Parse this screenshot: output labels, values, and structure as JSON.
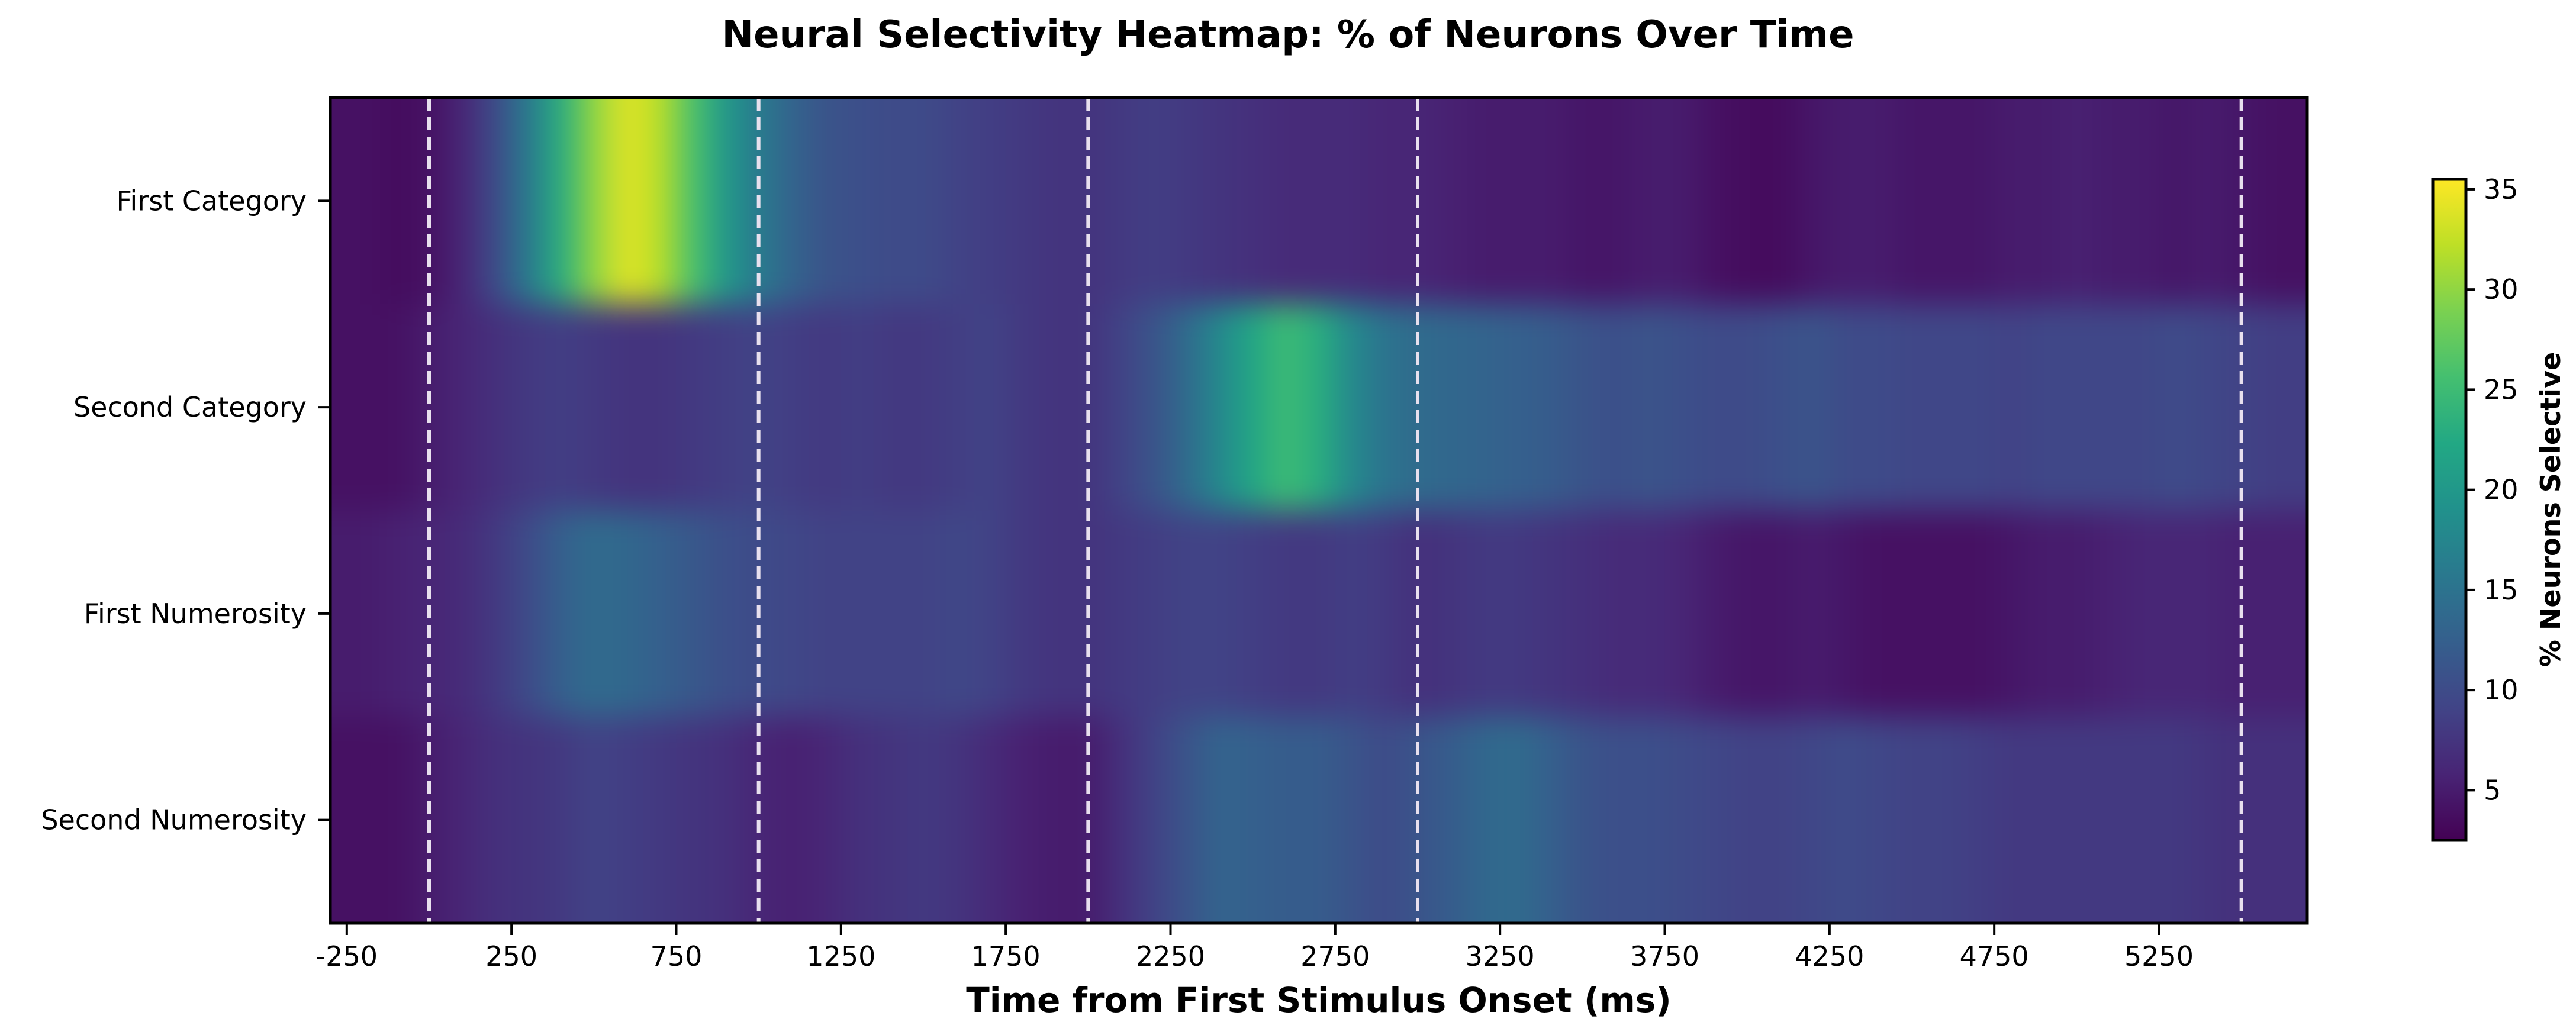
{
  "chart_data": {
    "type": "heatmap",
    "title": "Neural Selectivity Heatmap: % of Neurons Over Time",
    "xlabel": "Time from First Stimulus Onset (ms)",
    "colorbar_label": "% Neurons Selective",
    "colormap": "viridis",
    "xlim": [
      -300,
      5700
    ],
    "x_ticks": [
      -250,
      250,
      750,
      1250,
      1750,
      2250,
      2750,
      3250,
      3750,
      4250,
      4750,
      5250
    ],
    "x_tick_labels": [
      "-250",
      "250",
      "750",
      "1250",
      "1750",
      "2250",
      "2750",
      "3250",
      "3750",
      "4250",
      "4750",
      "5250"
    ],
    "rows": [
      "First Category",
      "Second Category",
      "First Numerosity",
      "Second Numerosity"
    ],
    "vlines": [
      0,
      1000,
      2000,
      3000,
      5500
    ],
    "vline_color": "#e8e0ee",
    "color_range": [
      2.5,
      35.5
    ],
    "colorbar_ticks": [
      5,
      10,
      15,
      20,
      25,
      30,
      35
    ],
    "colorbar_tick_labels": [
      "5",
      "10",
      "15",
      "20",
      "25",
      "30",
      "35"
    ],
    "time_bins_ms": [
      -300,
      -200,
      -100,
      0,
      100,
      200,
      300,
      400,
      500,
      600,
      700,
      800,
      900,
      1000,
      1100,
      1200,
      1300,
      1400,
      1500,
      1600,
      1700,
      1800,
      1900,
      2000,
      2100,
      2200,
      2300,
      2400,
      2500,
      2600,
      2700,
      2800,
      2900,
      3000,
      3100,
      3200,
      3300,
      3400,
      3500,
      3600,
      3700,
      3800,
      3900,
      4000,
      4100,
      4200,
      4300,
      4400,
      4500,
      4600,
      4700,
      4800,
      4900,
      5000,
      5100,
      5200,
      5300,
      5400,
      5500,
      5600,
      5700
    ],
    "values": [
      [
        4,
        4,
        3.5,
        4,
        6,
        10,
        16,
        23,
        30,
        34,
        32,
        26,
        20,
        16,
        13,
        11,
        10.5,
        10,
        10,
        9,
        8.5,
        8,
        7.5,
        7.5,
        8,
        8.5,
        8,
        7.5,
        7,
        6.5,
        6.5,
        6.5,
        6,
        6,
        5.5,
        5,
        5,
        5,
        4.5,
        4.5,
        5,
        5,
        4,
        3.5,
        3.5,
        4.5,
        5,
        5,
        4.5,
        4.5,
        4.5,
        5,
        5,
        5.5,
        5,
        5,
        4.5,
        5,
        4.5,
        4,
        4
      ],
      [
        4,
        4,
        4,
        5,
        6,
        7,
        8,
        8.5,
        8,
        7.5,
        7.5,
        8,
        8.5,
        9,
        8.5,
        8,
        8.5,
        8,
        8,
        8.5,
        9,
        8,
        7.5,
        7.5,
        9,
        11,
        14,
        18,
        22,
        25,
        23,
        18,
        15,
        14,
        13.5,
        13,
        12.5,
        12,
        11,
        10.5,
        11,
        10.5,
        10,
        10,
        10.5,
        11,
        10,
        10,
        9.5,
        9.5,
        9.5,
        9,
        9.5,
        9.5,
        9.5,
        9.5,
        10,
        9.5,
        9,
        8.5,
        8.5
      ],
      [
        5,
        5,
        5.5,
        6,
        6.5,
        8,
        10,
        12.5,
        14,
        13.5,
        12.5,
        11.5,
        10.5,
        10,
        9.5,
        9,
        9,
        9,
        9,
        9.5,
        9,
        8,
        7.5,
        7.5,
        8,
        8.5,
        9,
        9,
        8.5,
        8,
        8,
        8.5,
        8,
        7,
        7.5,
        8,
        8,
        7.5,
        7,
        6.5,
        6.5,
        6,
        5,
        4.5,
        4.5,
        5,
        4.5,
        4,
        4,
        4,
        4,
        4.5,
        5,
        5,
        5.5,
        6,
        6,
        6,
        5.5,
        5.5,
        5.5
      ],
      [
        4,
        4,
        4,
        5,
        6,
        7,
        7.5,
        8,
        9,
        8.5,
        8,
        7.5,
        7,
        6,
        5.5,
        6,
        7,
        7.5,
        8,
        7.5,
        6.5,
        5.5,
        5,
        5,
        7,
        9,
        11,
        13,
        12.5,
        12,
        12,
        11,
        10,
        11,
        12,
        13.5,
        14,
        12.5,
        11,
        10.5,
        10.5,
        10,
        9.5,
        9,
        9,
        9.5,
        10,
        9.5,
        9,
        9,
        8.5,
        8,
        8,
        8,
        8,
        8,
        8,
        7.5,
        7,
        7,
        7
      ]
    ]
  }
}
